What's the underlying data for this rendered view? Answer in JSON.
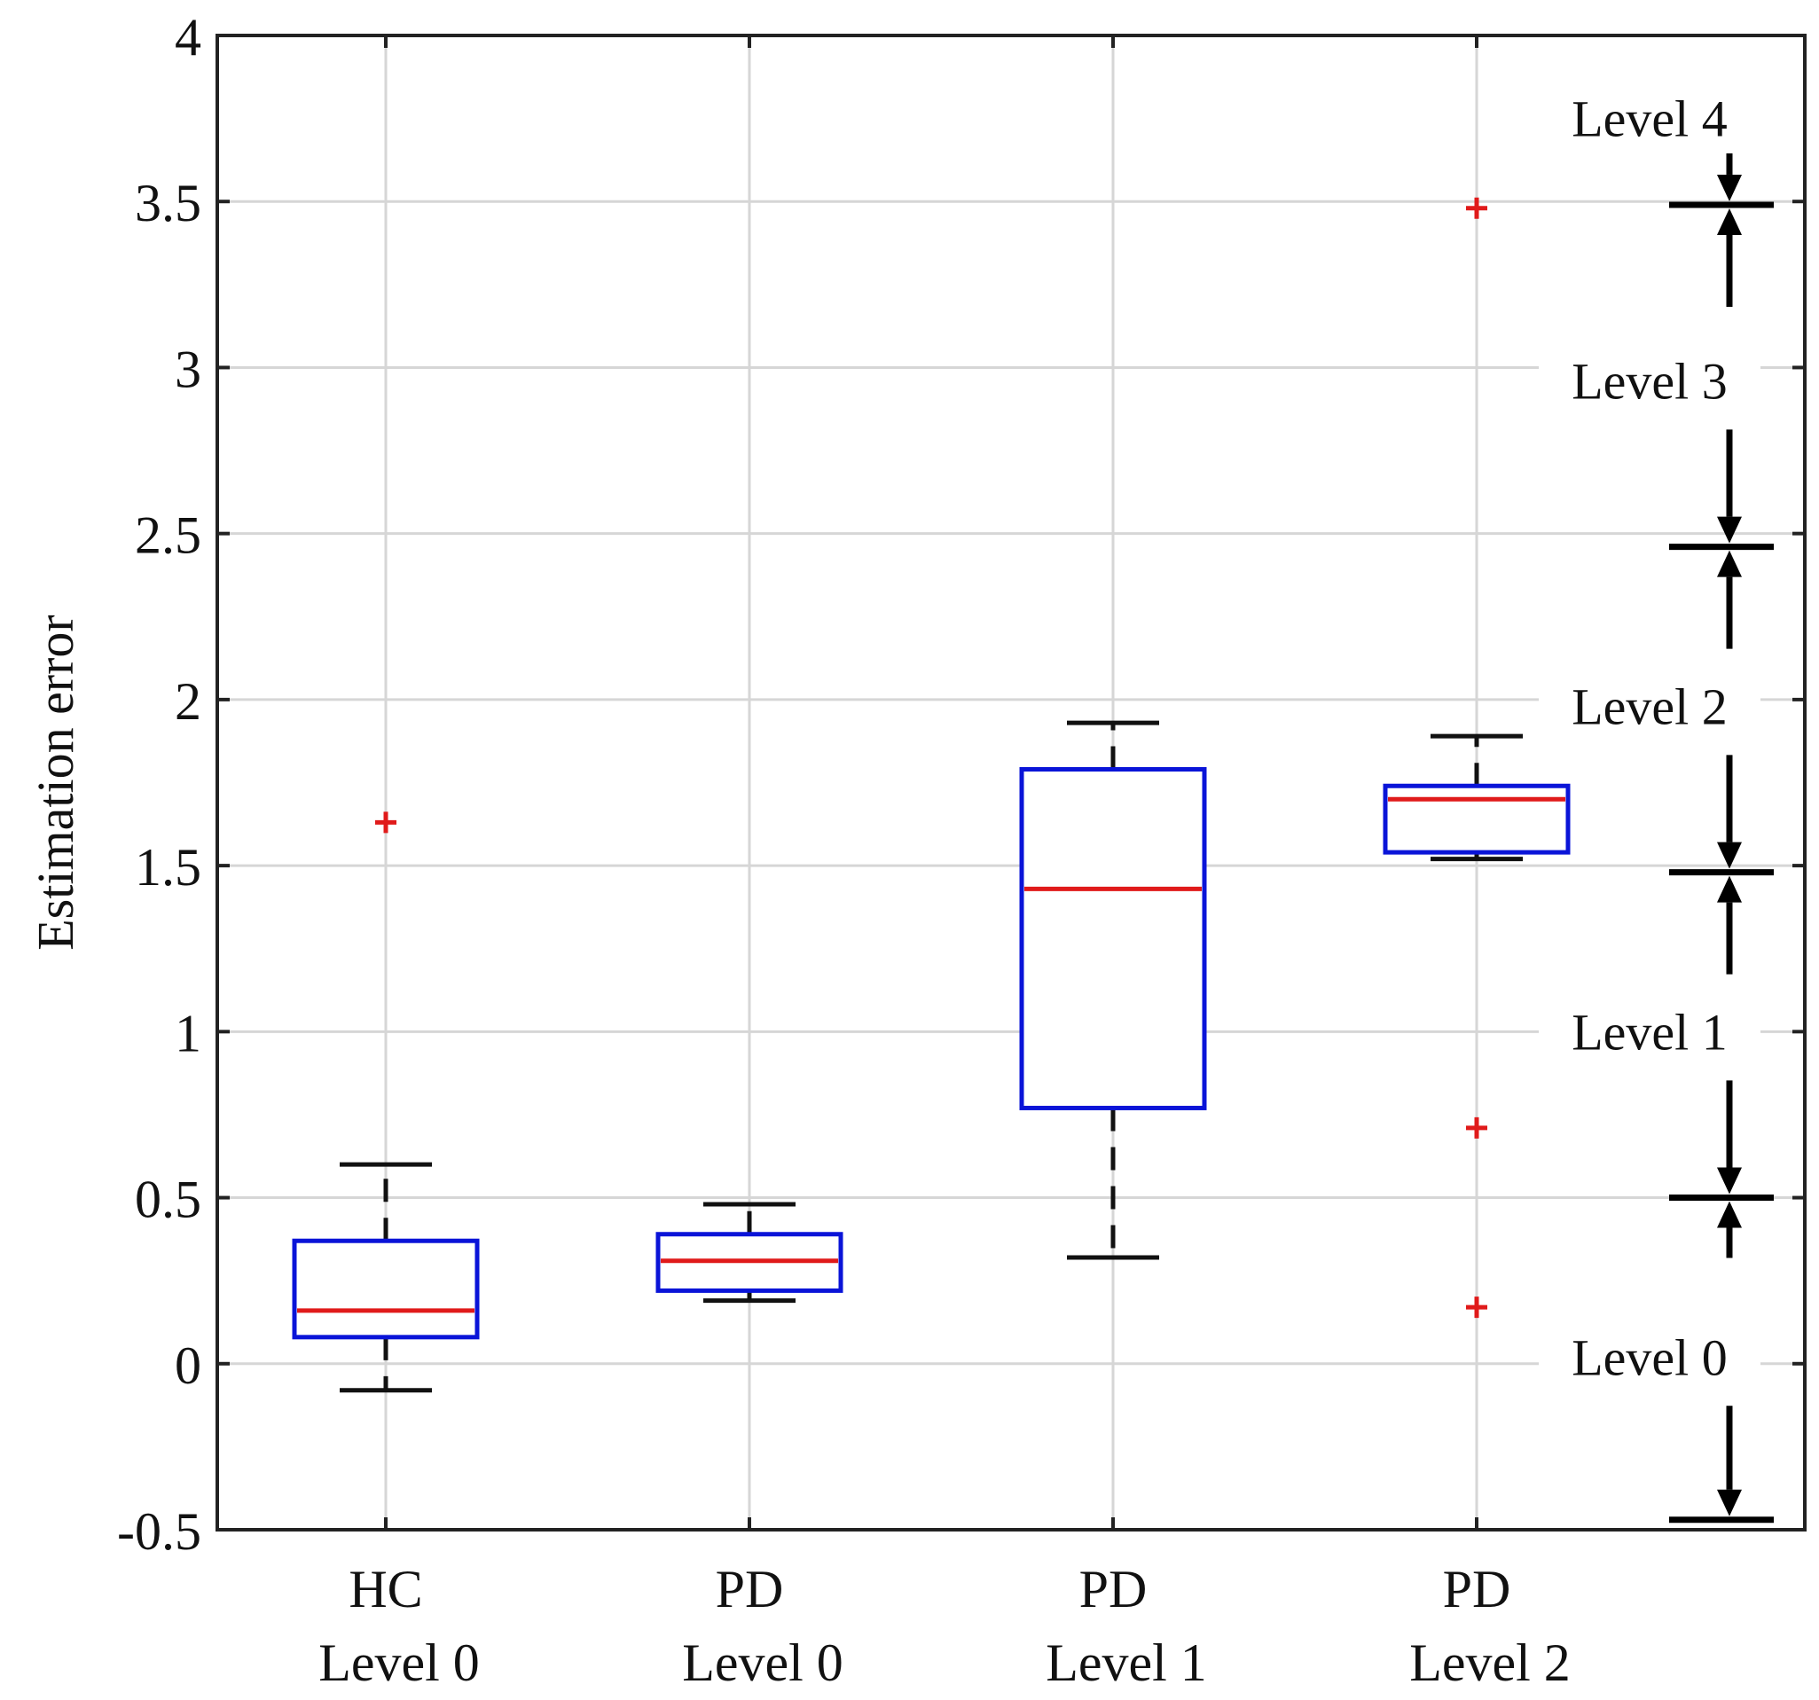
{
  "chart_data": {
    "type": "box",
    "title": "",
    "xlabel": "",
    "ylabel": "Estimation error",
    "ylim": [
      -0.5,
      4
    ],
    "yticks": [
      -0.5,
      0,
      0.5,
      1,
      1.5,
      2,
      2.5,
      3,
      3.5,
      4
    ],
    "ytick_labels": [
      "-0.5",
      "0",
      "0.5",
      "1",
      "1.5",
      "2",
      "2.5",
      "3",
      "3.5",
      "4"
    ],
    "grid": true,
    "categories": [
      {
        "line1": "HC",
        "line2": "Level 0"
      },
      {
        "line1": "PD",
        "line2": "Level 0"
      },
      {
        "line1": "PD",
        "line2": "Level 1"
      },
      {
        "line1": "PD",
        "line2": "Level 2"
      }
    ],
    "boxes": [
      {
        "whisker_low": -0.08,
        "q1": 0.08,
        "median": 0.16,
        "q3": 0.37,
        "whisker_high": 0.6,
        "outliers": [
          1.63
        ]
      },
      {
        "whisker_low": 0.19,
        "q1": 0.22,
        "median": 0.31,
        "q3": 0.39,
        "whisker_high": 0.48,
        "outliers": []
      },
      {
        "whisker_low": 0.32,
        "q1": 0.77,
        "median": 1.43,
        "q3": 1.79,
        "whisker_high": 1.93,
        "outliers": []
      },
      {
        "whisker_low": 1.52,
        "q1": 1.54,
        "median": 1.7,
        "q3": 1.74,
        "whisker_high": 1.89,
        "outliers": [
          3.48,
          0.71,
          0.17
        ]
      }
    ],
    "level_annotations": {
      "boundaries": [
        -0.47,
        0.5,
        1.48,
        2.46,
        3.49
      ],
      "labels": [
        {
          "text": "Level 0",
          "y": 0.02
        },
        {
          "text": "Level 1",
          "y": 1.0
        },
        {
          "text": "Level 2",
          "y": 1.98
        },
        {
          "text": "Level 3",
          "y": 2.96
        },
        {
          "text": "Level 4",
          "y": 3.75
        }
      ]
    },
    "colors": {
      "box": "#0a14d8",
      "median": "#e01a1a",
      "whisker": "#111111",
      "outlier": "#e01a1a",
      "grid": "#d6d6d6",
      "axis": "#222222"
    }
  }
}
